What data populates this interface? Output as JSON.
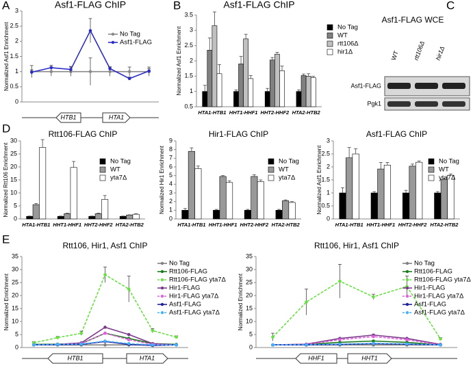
{
  "panel_labels": [
    "A",
    "B",
    "C",
    "D",
    "E"
  ],
  "blot": {
    "title": "Asf1-FLAG WCE",
    "lanes": [
      "WT",
      "rtt106Δ",
      "hir1Δ"
    ],
    "rows": [
      "Asf1-FLAG",
      "Pgk1"
    ]
  },
  "chart_data": [
    {
      "type": "line",
      "title": "Asf1-FLAG ChIP",
      "y_label": "Normalized Asf1 Enrichment",
      "categories": [
        null,
        null,
        null,
        null,
        null,
        null,
        null
      ],
      "ylim": [
        0,
        3
      ],
      "yticks": [
        0,
        0.5,
        1,
        1.5,
        2,
        2.5,
        3
      ],
      "legend": "upper right",
      "genes": [
        "HTB1",
        "HTA1"
      ],
      "series": [
        {
          "name": "No Tag",
          "color": "#888888",
          "values": [
            1,
            1,
            1,
            1,
            1,
            1,
            1
          ],
          "errors": [
            0.2,
            0.15,
            0.15,
            0.45,
            0.15,
            0.15,
            0.15
          ]
        },
        {
          "name": "Asf1-FLAG",
          "color": "#2b2bc8",
          "values": [
            0.98,
            1.13,
            1.07,
            2.35,
            1.1,
            0.77,
            1.02
          ],
          "errors": [
            0.08,
            0.08,
            0.1,
            0.4,
            0.06,
            0.05,
            0.08
          ]
        }
      ]
    },
    {
      "type": "bar",
      "title": "Asf1-FLAG ChIP",
      "y_label": "Normalized Asf1 Enrichment",
      "categories": [
        "HTA1-HTB1",
        "HHT1-HHF1",
        "HHT2-HHF2",
        "HTA2-HTB2"
      ],
      "ylim": [
        0.5,
        3.5
      ],
      "yticks": [
        0.5,
        1,
        1.5,
        2,
        2.5,
        3,
        3.5
      ],
      "legend": "right",
      "series": [
        {
          "name": "No Tag",
          "color": "#000000",
          "values": [
            1,
            1,
            1,
            1
          ],
          "errors": [
            0.2,
            0.05,
            0.1,
            0.05
          ]
        },
        {
          "name": "WT",
          "color": "#808080",
          "values": [
            2.35,
            1.9,
            2.03,
            1.52
          ],
          "errors": [
            0.4,
            0.25,
            0.08,
            0.05
          ]
        },
        {
          "name": "rtt106Δ",
          "color": "#c0c0c0",
          "values": [
            3.15,
            2.72,
            2.22,
            1.5
          ],
          "errors": [
            0.45,
            0.15,
            0.06,
            0.08
          ]
        },
        {
          "name": "hir1Δ",
          "color": "#ffffff",
          "values": [
            1.58,
            1.42,
            1.68,
            1.45
          ],
          "errors": [
            0.3,
            0.1,
            0.15,
            0.05
          ]
        }
      ]
    },
    {
      "type": "bar",
      "title": "Rtt106-FLAG ChIP",
      "y_label": "Normalized Rtt106 Enrichment",
      "categories": [
        "HTA1-HTB1",
        "HHT1-HHF1",
        "HHT2-HHF2",
        "HTA2-HTB2"
      ],
      "ylim": [
        0,
        30
      ],
      "yticks": [
        0,
        5,
        10,
        15,
        20,
        25,
        30
      ],
      "legend": "upper right",
      "series": [
        {
          "name": "No Tag",
          "color": "#000000",
          "values": [
            1,
            1,
            1,
            1
          ],
          "errors": [
            0.1,
            0.1,
            0.1,
            0.1
          ]
        },
        {
          "name": "WT",
          "color": "#999999",
          "values": [
            5.5,
            2,
            2,
            1.5
          ],
          "errors": [
            0.4,
            0.2,
            0.2,
            0.1
          ]
        },
        {
          "name": "yta7Δ",
          "color": "#ffffff",
          "values": [
            27.5,
            19.8,
            7.5,
            1.8
          ],
          "errors": [
            3,
            2.3,
            1.5,
            0.2
          ]
        }
      ]
    },
    {
      "type": "bar",
      "title": "Hir1-FLAG ChIP",
      "y_label": "Normalized Hir1 Enrichment",
      "categories": [
        "HTA1-HTB1",
        "HHT1-HHF1",
        "HHT2-HHF2",
        "HTA2-HTB2"
      ],
      "ylim": [
        0,
        9
      ],
      "yticks": [
        0,
        1,
        2,
        3,
        4,
        5,
        6,
        7,
        8,
        9
      ],
      "legend": "upper right",
      "series": [
        {
          "name": "No Tag",
          "color": "#000000",
          "values": [
            1,
            1,
            1,
            1
          ],
          "errors": [
            0.2,
            0.1,
            0.1,
            0.1
          ]
        },
        {
          "name": "WT",
          "color": "#999999",
          "values": [
            7.8,
            4.9,
            4.9,
            2.1
          ],
          "errors": [
            0.4,
            0.1,
            0.2,
            0.1
          ]
        },
        {
          "name": "yta7Δ",
          "color": "#ffffff",
          "values": [
            5.8,
            4.2,
            4.3,
            1.9
          ],
          "errors": [
            0.3,
            0.2,
            0.2,
            0.1
          ]
        }
      ]
    },
    {
      "type": "bar",
      "title": "Asf1-FLAG ChIP",
      "y_label": "Normalized Asf1 Enrichment",
      "categories": [
        "HTA1-HTB1",
        "HHT1-HHF1",
        "HHT2-HHF2",
        "HTA2-HTB2"
      ],
      "ylim": [
        0,
        3
      ],
      "yticks": [
        0,
        0.5,
        1,
        1.5,
        2,
        2.5,
        3
      ],
      "legend": "upper right",
      "series": [
        {
          "name": "No Tag",
          "color": "#000000",
          "values": [
            1,
            1,
            1,
            1
          ],
          "errors": [
            0.2,
            0.05,
            0.1,
            0.05
          ]
        },
        {
          "name": "WT",
          "color": "#999999",
          "values": [
            2.35,
            1.92,
            2.03,
            1.52
          ],
          "errors": [
            0.4,
            0.25,
            0.08,
            0.05
          ]
        },
        {
          "name": "yta7Δ",
          "color": "#ffffff",
          "values": [
            2.5,
            2.07,
            2.18,
            1.68
          ],
          "errors": [
            0.2,
            0.1,
            0.05,
            0.05
          ]
        }
      ]
    },
    {
      "type": "line",
      "title": "Rtt106, Hir1, Asf1 ChIP",
      "y_label": "Normalized Enrichment",
      "categories": [
        null,
        null,
        null,
        null,
        null,
        null,
        null
      ],
      "ylim": [
        0,
        35
      ],
      "yticks": [
        0,
        5,
        10,
        15,
        20,
        25,
        30,
        35
      ],
      "legend": "upper right",
      "genes": [
        "HTB1",
        "HTA1"
      ],
      "series": [
        {
          "name": "No Tag",
          "color": "#808080",
          "values": [
            1,
            1,
            1,
            1,
            1,
            1,
            1
          ]
        },
        {
          "name": "Rtt106-FLAG",
          "color": "#1a7a1a",
          "values": [
            1.2,
            1.3,
            1.5,
            5.5,
            3.5,
            1.5,
            1.2
          ]
        },
        {
          "name": "Rtt106-FLAG yta7Δ",
          "color": "#66e040",
          "dashed": true,
          "values": [
            1.8,
            3.8,
            5.5,
            28,
            22.5,
            6.5,
            4
          ],
          "errors": [
            0.5,
            0.5,
            0.8,
            3,
            5,
            0.8,
            0.5
          ]
        },
        {
          "name": "Hir1-FLAG",
          "color": "#7a3a8a",
          "values": [
            1,
            1.2,
            1.8,
            7.8,
            5,
            1.5,
            1
          ]
        },
        {
          "name": "Hir1-FLAG yta7Δ",
          "color": "#e060e0",
          "dashed": true,
          "values": [
            1,
            1.2,
            1.5,
            5.5,
            3,
            1.2,
            1
          ]
        },
        {
          "name": "Asf1-FLAG",
          "color": "#20209a",
          "values": [
            1,
            1.1,
            1.2,
            2.3,
            1.2,
            0.8,
            1
          ]
        },
        {
          "name": "Asf1-FLAG yta7Δ",
          "color": "#40b0ff",
          "dashed": true,
          "values": [
            1,
            1.2,
            1.3,
            2.5,
            1.5,
            1,
            1
          ]
        }
      ]
    },
    {
      "type": "line",
      "title": "Rtt106, Hir1, Asf1 ChIP",
      "y_label": "Normalized Enrichment",
      "categories": [
        null,
        null,
        null,
        null,
        null,
        null
      ],
      "ylim": [
        0,
        35
      ],
      "yticks": [
        0,
        5,
        10,
        15,
        20,
        25,
        30,
        35
      ],
      "legend": "upper right",
      "genes": [
        "HHF1",
        "HHT1"
      ],
      "series": [
        {
          "name": "No Tag",
          "color": "#808080",
          "values": [
            1,
            1,
            1,
            1,
            1,
            1
          ]
        },
        {
          "name": "Rtt106-FLAG",
          "color": "#1a7a1a",
          "values": [
            1,
            1.2,
            2,
            2.5,
            2,
            1
          ]
        },
        {
          "name": "Rtt106-FLAG yta7Δ",
          "color": "#66e040",
          "dashed": true,
          "values": [
            4,
            17.5,
            25.5,
            19.5,
            23.5,
            3.3
          ],
          "errors": [
            1.5,
            5,
            6.5,
            1,
            4,
            0.5
          ]
        },
        {
          "name": "Hir1-FLAG",
          "color": "#7a3a8a",
          "values": [
            1,
            1.3,
            3.5,
            4.8,
            3.5,
            1.2
          ]
        },
        {
          "name": "Hir1-FLAG yta7Δ",
          "color": "#e060e0",
          "dashed": true,
          "values": [
            1,
            1.2,
            3,
            4.2,
            3,
            1
          ]
        },
        {
          "name": "Asf1-FLAG",
          "color": "#20209a",
          "values": [
            1,
            1,
            1.2,
            1.5,
            1.3,
            1
          ]
        },
        {
          "name": "Asf1-FLAG yta7Δ",
          "color": "#40b0ff",
          "dashed": true,
          "values": [
            1,
            1.1,
            1.3,
            1.6,
            1.4,
            1
          ]
        }
      ]
    }
  ]
}
